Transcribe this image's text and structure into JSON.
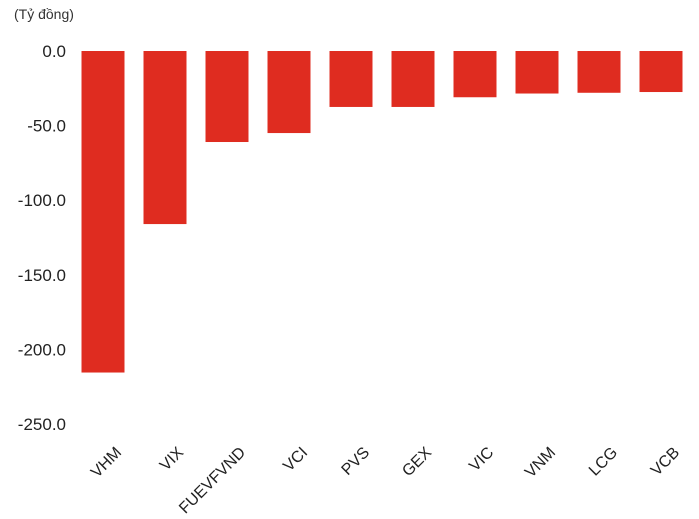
{
  "chart_data": {
    "type": "bar",
    "unit_label": "(Tỷ đồng)",
    "categories": [
      "VHM",
      "VIX",
      "FUEVFVND",
      "VCI",
      "PVS",
      "GEX",
      "VIC",
      "VNM",
      "LCG",
      "VCB"
    ],
    "values": [
      -215.5,
      -116.0,
      -61.0,
      -55.0,
      -37.5,
      -37.5,
      -31.0,
      -28.5,
      -28.0,
      -27.5
    ],
    "yticks": [
      "0.0",
      "-50.0",
      "-100.0",
      "-150.0",
      "-200.0",
      "-250.0"
    ],
    "ylim": [
      -250,
      0
    ],
    "bar_color": "#df2c20",
    "grid": false,
    "legend": "none"
  }
}
